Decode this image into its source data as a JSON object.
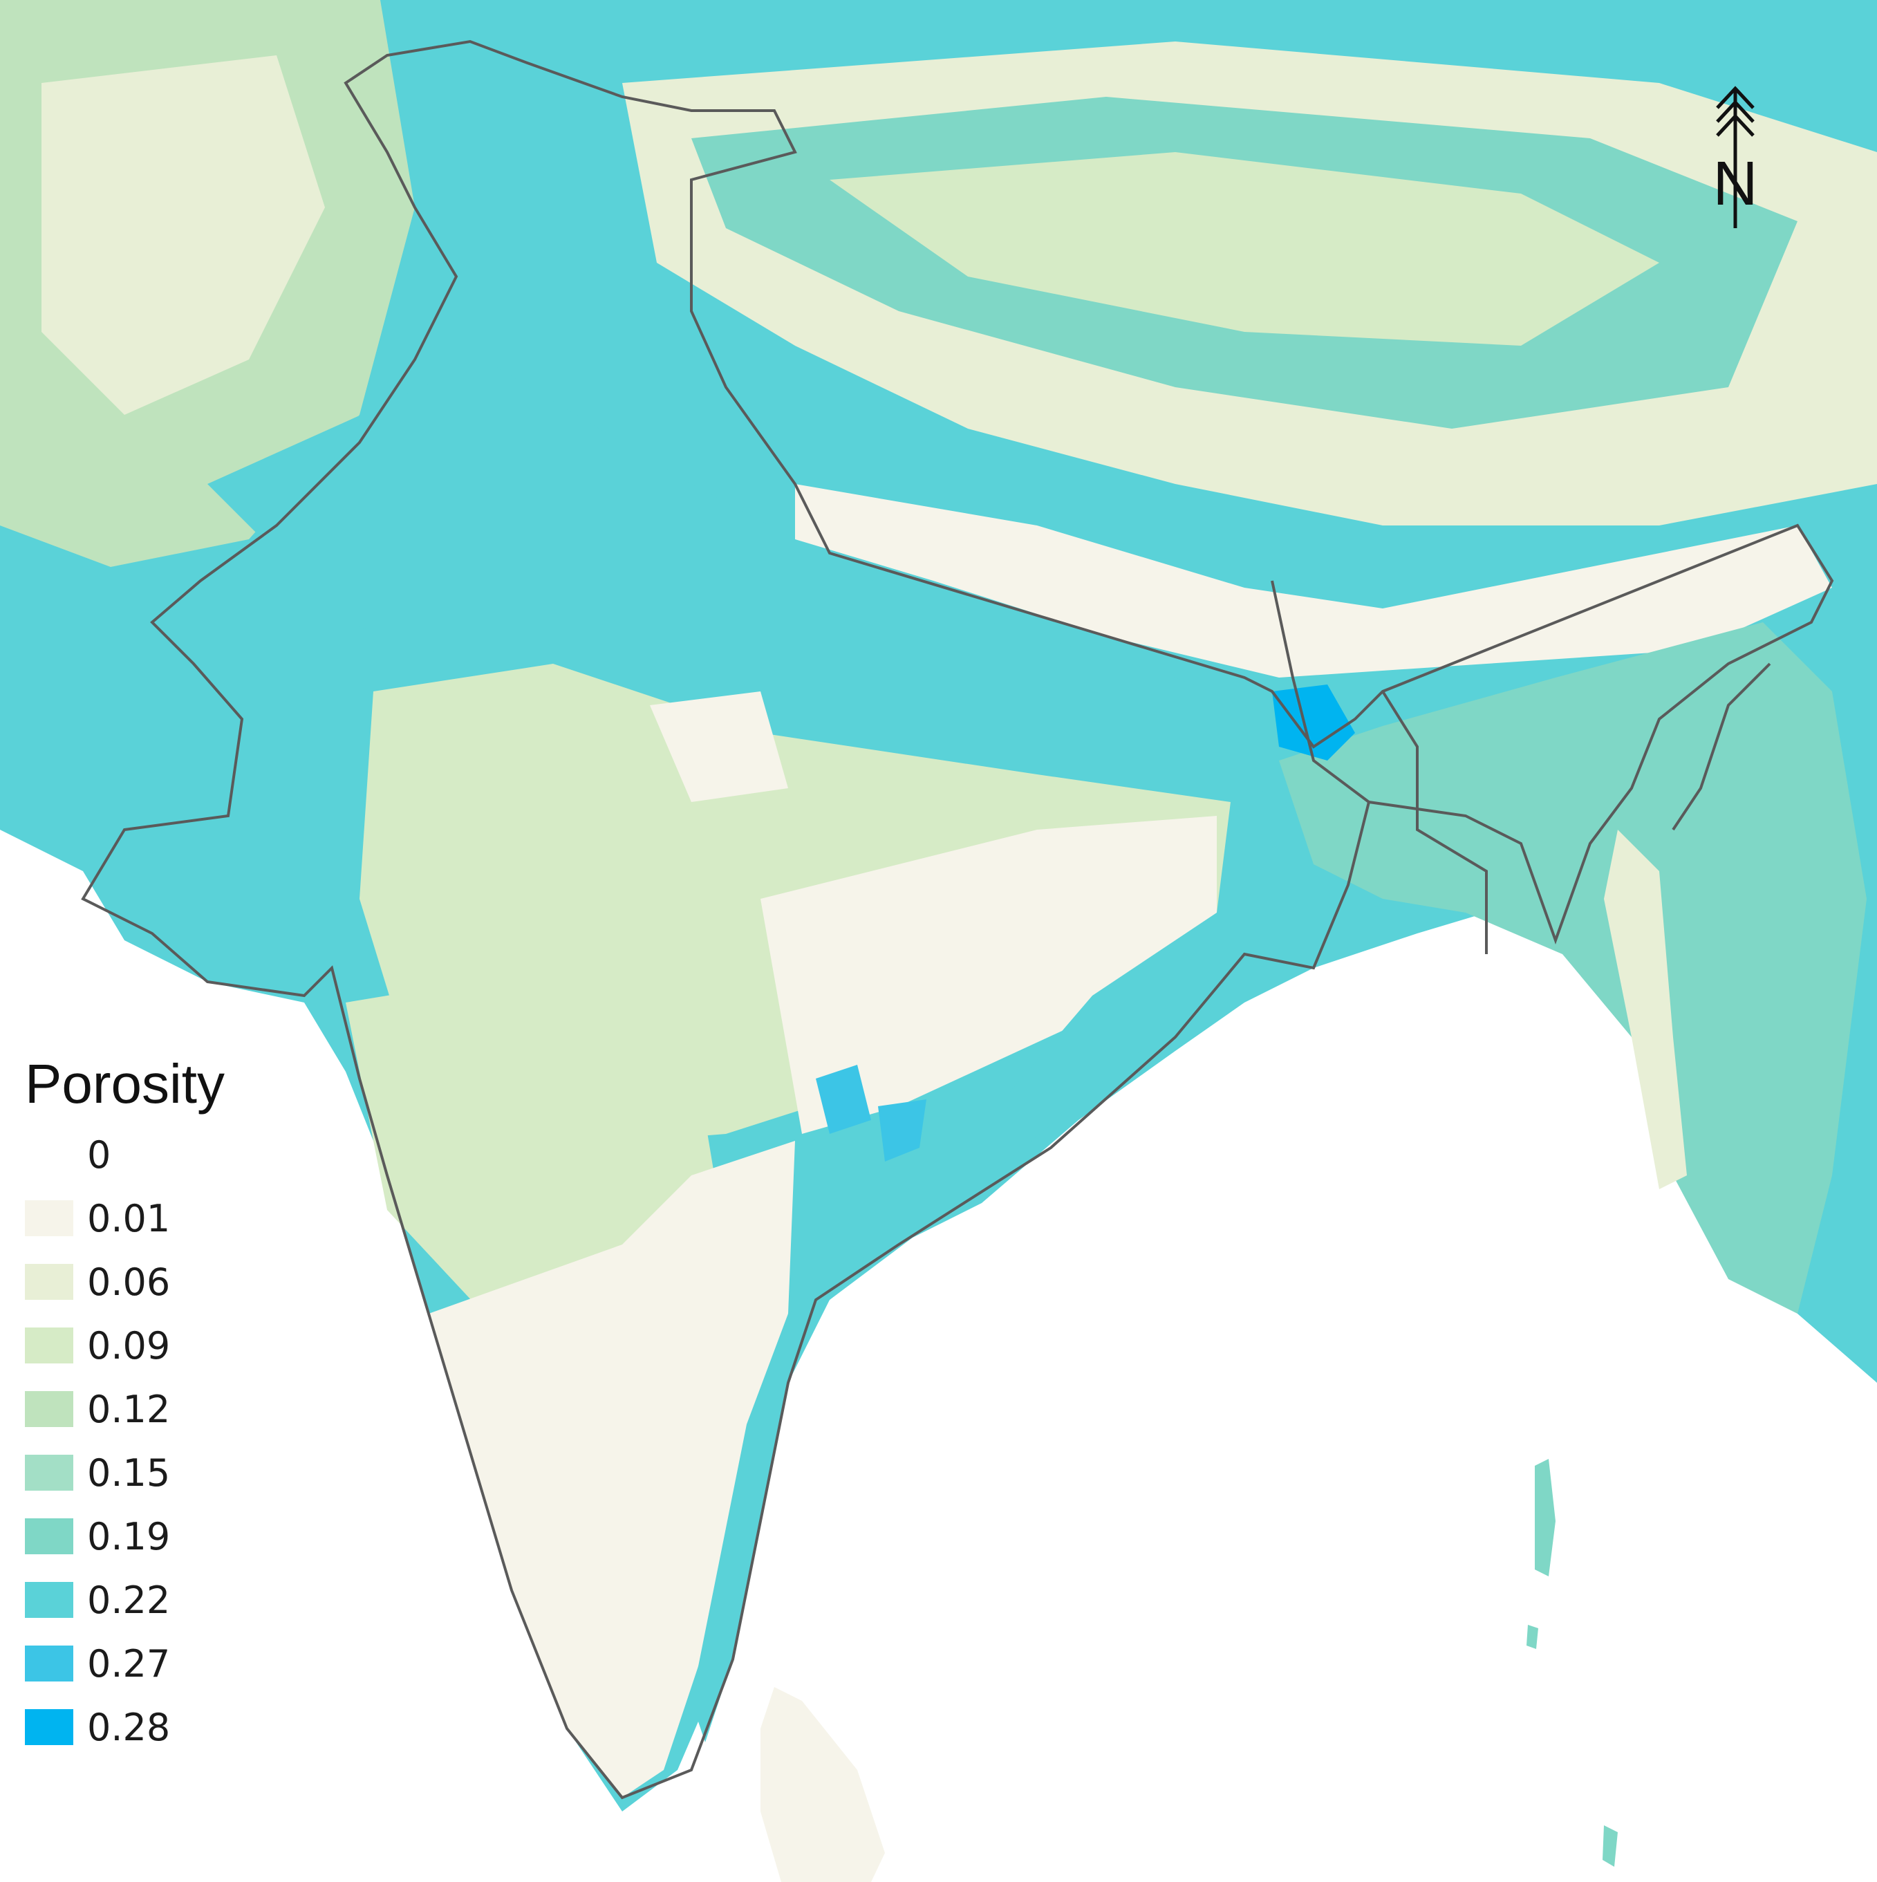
{
  "legend": {
    "title": "Porosity",
    "items": [
      {
        "label": "0",
        "color": "#ffffff"
      },
      {
        "label": "0.01",
        "color": "#f6f4ea"
      },
      {
        "label": "0.06",
        "color": "#e8efd6"
      },
      {
        "label": "0.09",
        "color": "#d6ebc6"
      },
      {
        "label": "0.12",
        "color": "#bfe3bd"
      },
      {
        "label": "0.15",
        "color": "#a3dfc6"
      },
      {
        "label": "0.19",
        "color": "#7fd7c6"
      },
      {
        "label": "0.22",
        "color": "#5ad2d8"
      },
      {
        "label": "0.27",
        "color": "#3cc5e6"
      },
      {
        "label": "0.28",
        "color": "#00b4f0"
      }
    ]
  },
  "north_arrow": {
    "label": "N"
  },
  "colors": {
    "boundary": "#5a5a5a",
    "background": "#ffffff"
  }
}
